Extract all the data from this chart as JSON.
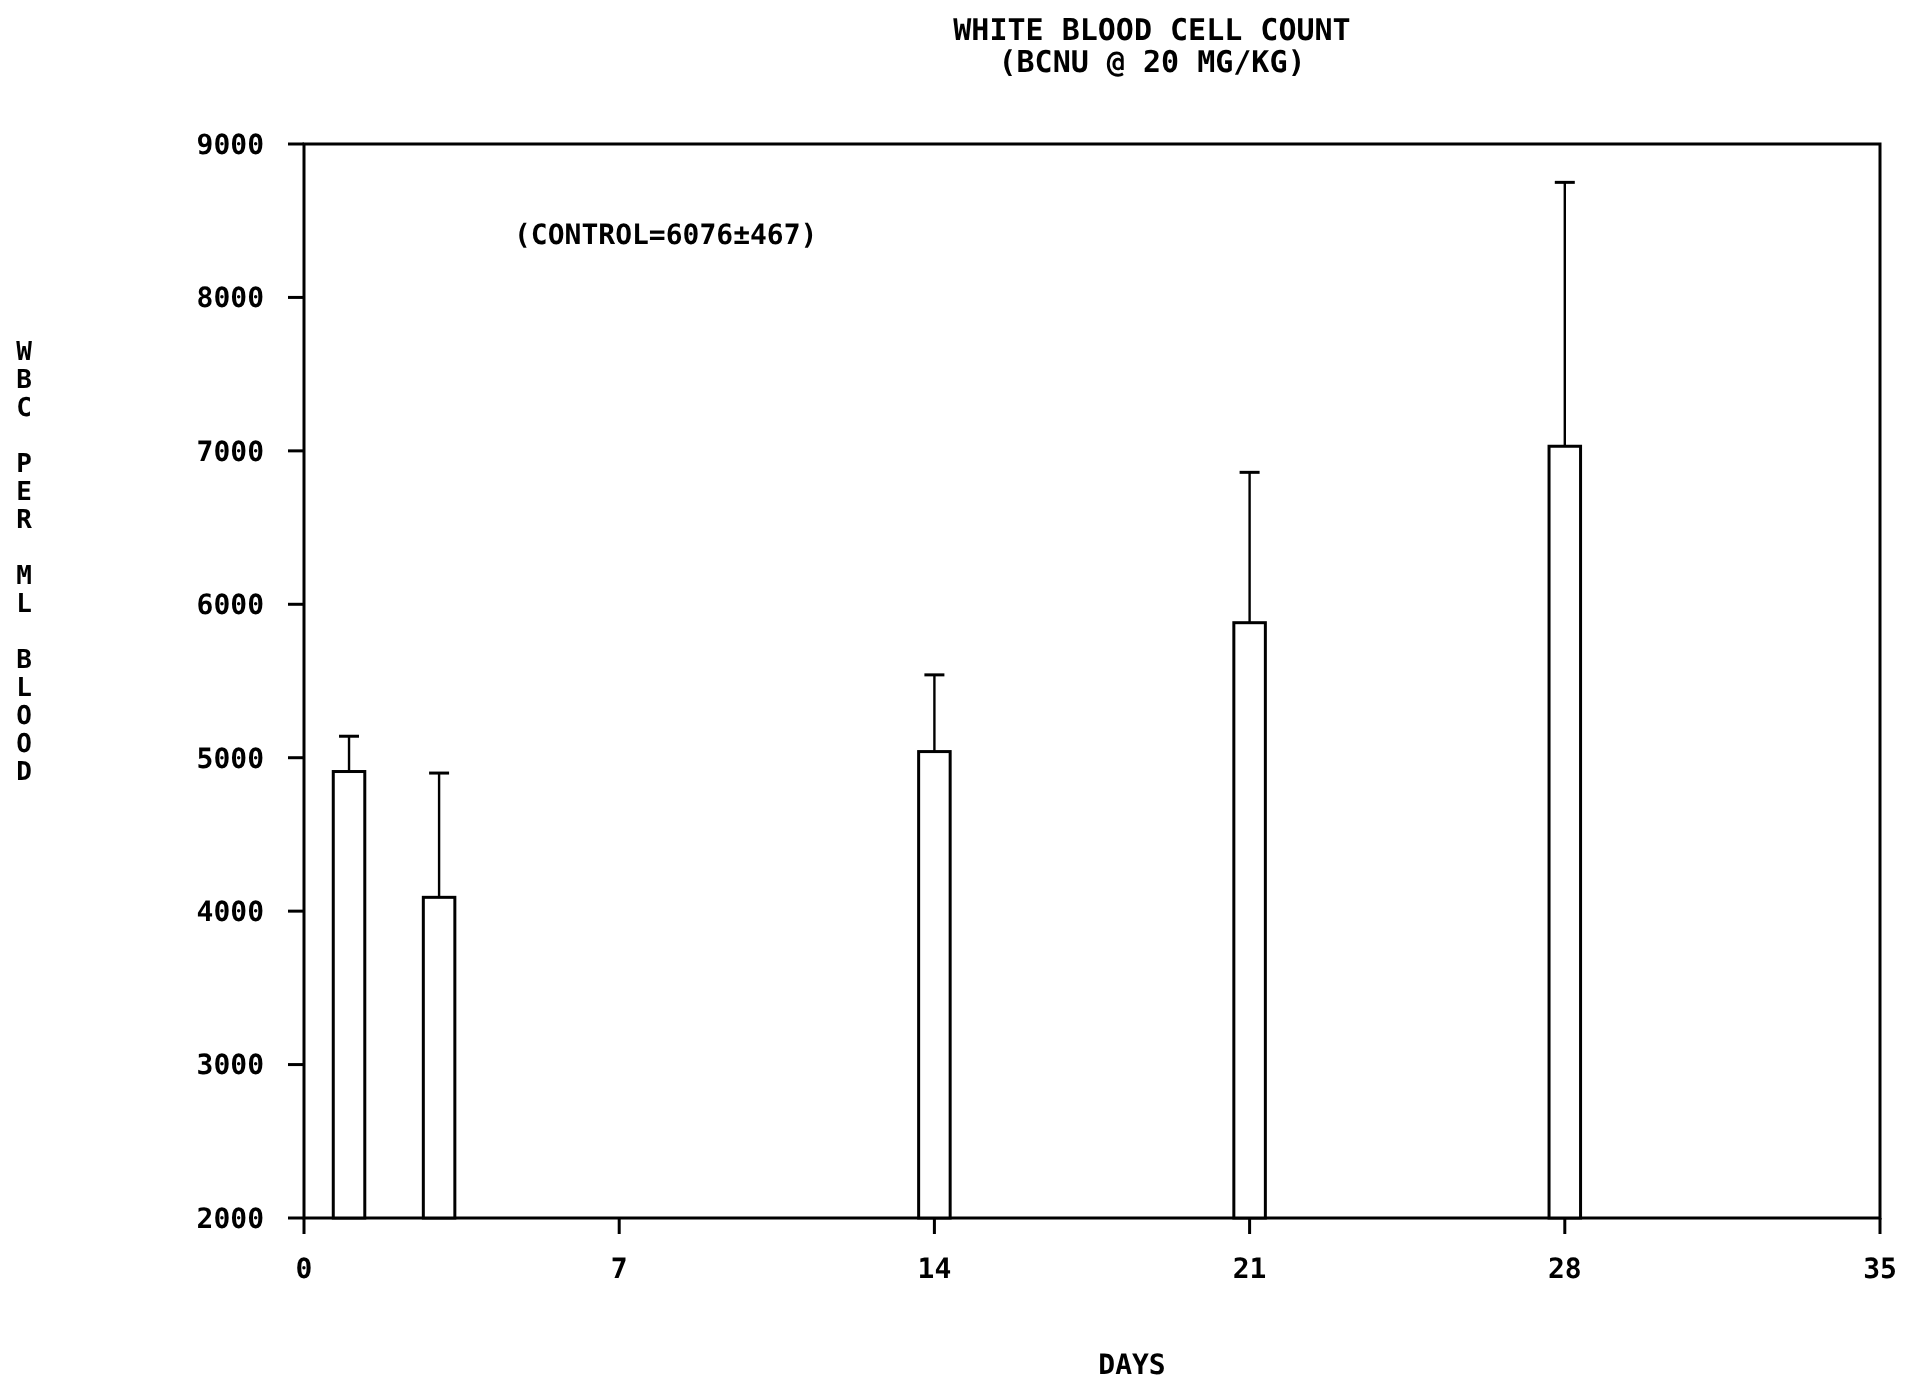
{
  "chart_data": {
    "type": "bar",
    "title": "WHITE BLOOD CELL COUNT",
    "subtitle": "(BCNU @ 20 MG/KG)",
    "xlabel": "DAYS",
    "ylabel": "WBC PER ML BLOOD",
    "annotations": [
      "(CONTROL=6076±467)"
    ],
    "x": [
      1,
      3,
      14,
      21,
      28
    ],
    "values": [
      4910,
      4090,
      5040,
      5880,
      7030
    ],
    "errors": [
      [
        4910,
        5140
      ],
      [
        4090,
        4900
      ],
      [
        5040,
        5540
      ],
      [
        5880,
        6860
      ],
      [
        7030,
        8750
      ]
    ],
    "color": "#ffffff",
    "xlim": [
      0,
      35
    ],
    "xticks": [
      0,
      7,
      14,
      21,
      28,
      35
    ],
    "ylim": [
      2000,
      9000
    ],
    "yticks": [
      2000,
      3000,
      4000,
      5000,
      6000,
      7000,
      8000,
      9000
    ],
    "grid": false
  }
}
